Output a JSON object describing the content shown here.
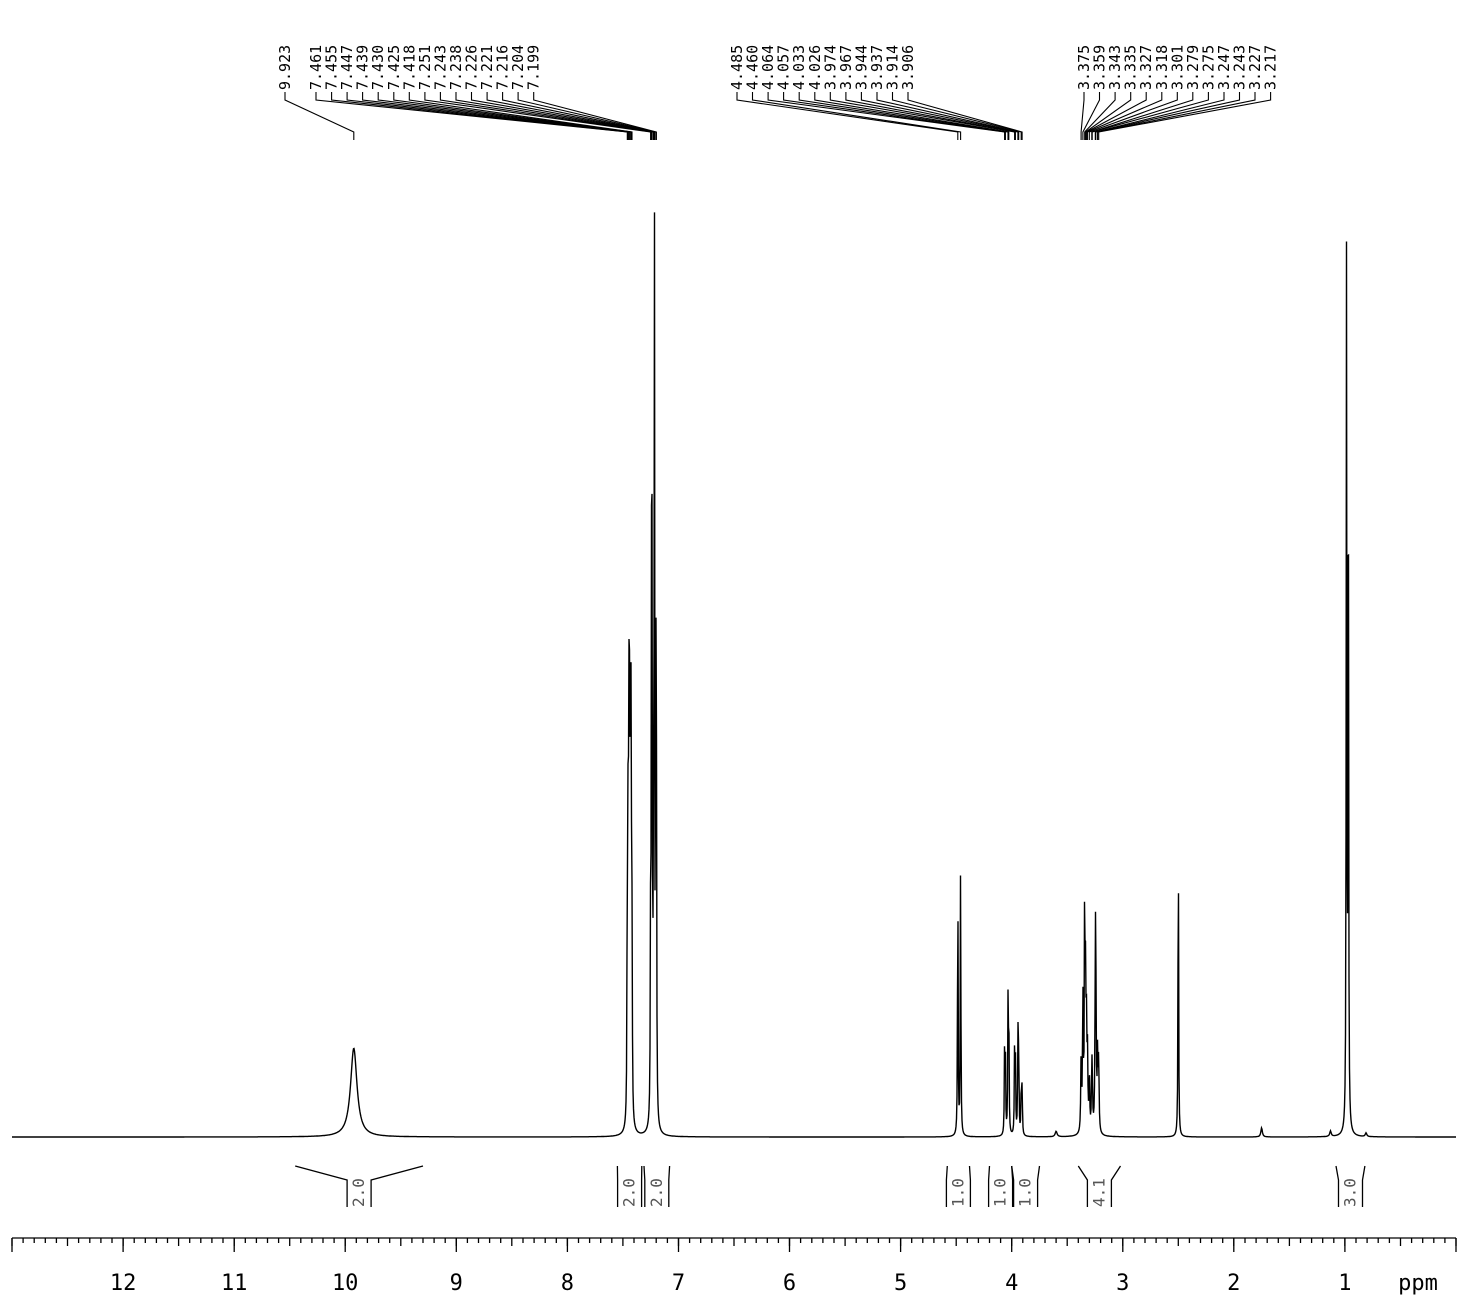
{
  "chart_data": {
    "type": "line",
    "xlabel": "ppm",
    "xlim": [
      13,
      0
    ],
    "ticks": [
      12,
      11,
      10,
      9,
      8,
      7,
      6,
      5,
      4,
      3,
      2,
      1
    ],
    "peak_labels": [
      {
        "group": 0,
        "ppm": 9.923,
        "text": "9.923"
      },
      {
        "group": 1,
        "ppm": 7.461,
        "text": "7.461"
      },
      {
        "group": 1,
        "ppm": 7.455,
        "text": "7.455"
      },
      {
        "group": 1,
        "ppm": 7.447,
        "text": "7.447"
      },
      {
        "group": 1,
        "ppm": 7.439,
        "text": "7.439"
      },
      {
        "group": 1,
        "ppm": 7.43,
        "text": "7.430"
      },
      {
        "group": 1,
        "ppm": 7.425,
        "text": "7.425"
      },
      {
        "group": 1,
        "ppm": 7.418,
        "text": "7.418"
      },
      {
        "group": 1,
        "ppm": 7.251,
        "text": "7.251"
      },
      {
        "group": 1,
        "ppm": 7.243,
        "text": "7.243"
      },
      {
        "group": 1,
        "ppm": 7.238,
        "text": "7.238"
      },
      {
        "group": 1,
        "ppm": 7.226,
        "text": "7.226"
      },
      {
        "group": 1,
        "ppm": 7.221,
        "text": "7.221"
      },
      {
        "group": 1,
        "ppm": 7.216,
        "text": "7.216"
      },
      {
        "group": 1,
        "ppm": 7.204,
        "text": "7.204"
      },
      {
        "group": 1,
        "ppm": 7.199,
        "text": "7.199"
      },
      {
        "group": 2,
        "ppm": 4.485,
        "text": "4.485"
      },
      {
        "group": 2,
        "ppm": 4.46,
        "text": "4.460"
      },
      {
        "group": 2,
        "ppm": 4.064,
        "text": "4.064"
      },
      {
        "group": 2,
        "ppm": 4.057,
        "text": "4.057"
      },
      {
        "group": 2,
        "ppm": 4.033,
        "text": "4.033"
      },
      {
        "group": 2,
        "ppm": 4.026,
        "text": "4.026"
      },
      {
        "group": 2,
        "ppm": 3.974,
        "text": "3.974"
      },
      {
        "group": 2,
        "ppm": 3.967,
        "text": "3.967"
      },
      {
        "group": 2,
        "ppm": 3.944,
        "text": "3.944"
      },
      {
        "group": 2,
        "ppm": 3.937,
        "text": "3.937"
      },
      {
        "group": 2,
        "ppm": 3.914,
        "text": "3.914"
      },
      {
        "group": 2,
        "ppm": 3.906,
        "text": "3.906"
      },
      {
        "group": 3,
        "ppm": 3.375,
        "text": "3.375"
      },
      {
        "group": 3,
        "ppm": 3.359,
        "text": "3.359"
      },
      {
        "group": 3,
        "ppm": 3.343,
        "text": "3.343"
      },
      {
        "group": 3,
        "ppm": 3.335,
        "text": "3.335"
      },
      {
        "group": 3,
        "ppm": 3.327,
        "text": "3.327"
      },
      {
        "group": 3,
        "ppm": 3.318,
        "text": "3.318"
      },
      {
        "group": 3,
        "ppm": 3.301,
        "text": "3.301"
      },
      {
        "group": 3,
        "ppm": 3.279,
        "text": "3.279"
      },
      {
        "group": 3,
        "ppm": 3.275,
        "text": "3.275"
      },
      {
        "group": 3,
        "ppm": 3.247,
        "text": "3.247"
      },
      {
        "group": 3,
        "ppm": 3.243,
        "text": "3.243"
      },
      {
        "group": 3,
        "ppm": 3.227,
        "text": "3.227"
      },
      {
        "group": 3,
        "ppm": 3.217,
        "text": "3.217"
      }
    ],
    "integrals": [
      {
        "from": 10.45,
        "to": 9.3,
        "value": "2.0"
      },
      {
        "from": 7.55,
        "to": 7.33,
        "value": "2.0"
      },
      {
        "from": 7.31,
        "to": 7.08,
        "value": "2.0"
      },
      {
        "from": 4.58,
        "to": 4.38,
        "value": "1.0"
      },
      {
        "from": 4.2,
        "to": 4.0,
        "value": "1.0"
      },
      {
        "from": 4.0,
        "to": 3.75,
        "value": "1.0"
      },
      {
        "from": 3.4,
        "to": 3.02,
        "value": "4.1"
      },
      {
        "from": 1.08,
        "to": 0.82,
        "value": "3.0"
      }
    ],
    "signals": [
      {
        "ppm": 9.923,
        "height": 0.097,
        "width": 0.035
      },
      {
        "ppm": 7.461,
        "height": 0.22,
        "width": 0.003
      },
      {
        "ppm": 7.455,
        "height": 0.28,
        "width": 0.003
      },
      {
        "ppm": 7.447,
        "height": 0.52,
        "width": 0.003
      },
      {
        "ppm": 7.439,
        "height": 0.5,
        "width": 0.003
      },
      {
        "ppm": 7.43,
        "height": 0.48,
        "width": 0.003
      },
      {
        "ppm": 7.425,
        "height": 0.3,
        "width": 0.003
      },
      {
        "ppm": 7.418,
        "height": 0.18,
        "width": 0.003
      },
      {
        "ppm": 7.251,
        "height": 0.2,
        "width": 0.003
      },
      {
        "ppm": 7.243,
        "height": 0.5,
        "width": 0.003
      },
      {
        "ppm": 7.238,
        "height": 0.52,
        "width": 0.003
      },
      {
        "ppm": 7.226,
        "height": 0.2,
        "width": 0.003
      },
      {
        "ppm": 7.221,
        "height": 0.3,
        "width": 0.003
      },
      {
        "ppm": 7.216,
        "height": 0.88,
        "width": 0.002
      },
      {
        "ppm": 7.204,
        "height": 0.48,
        "width": 0.003
      },
      {
        "ppm": 7.199,
        "height": 0.38,
        "width": 0.003
      },
      {
        "ppm": 4.485,
        "height": 0.298,
        "width": 0.003
      },
      {
        "ppm": 4.46,
        "height": 0.305,
        "width": 0.003
      },
      {
        "ppm": 4.064,
        "height": 0.09,
        "width": 0.003
      },
      {
        "ppm": 4.057,
        "height": 0.092,
        "width": 0.003
      },
      {
        "ppm": 4.033,
        "height": 0.14,
        "width": 0.003
      },
      {
        "ppm": 4.026,
        "height": 0.13,
        "width": 0.003
      },
      {
        "ppm": 3.974,
        "height": 0.09,
        "width": 0.003
      },
      {
        "ppm": 3.967,
        "height": 0.092,
        "width": 0.003
      },
      {
        "ppm": 3.944,
        "height": 0.11,
        "width": 0.003
      },
      {
        "ppm": 3.937,
        "height": 0.1,
        "width": 0.003
      },
      {
        "ppm": 3.914,
        "height": 0.06,
        "width": 0.003
      },
      {
        "ppm": 3.906,
        "height": 0.055,
        "width": 0.003
      },
      {
        "ppm": 3.375,
        "height": 0.08,
        "width": 0.004
      },
      {
        "ppm": 3.359,
        "height": 0.15,
        "width": 0.004
      },
      {
        "ppm": 3.343,
        "height": 0.27,
        "width": 0.003
      },
      {
        "ppm": 3.335,
        "height": 0.15,
        "width": 0.004
      },
      {
        "ppm": 3.327,
        "height": 0.1,
        "width": 0.004
      },
      {
        "ppm": 3.318,
        "height": 0.08,
        "width": 0.004
      },
      {
        "ppm": 3.301,
        "height": 0.06,
        "width": 0.004
      },
      {
        "ppm": 3.279,
        "height": 0.05,
        "width": 0.004
      },
      {
        "ppm": 3.275,
        "height": 0.05,
        "width": 0.004
      },
      {
        "ppm": 3.247,
        "height": 0.14,
        "width": 0.004
      },
      {
        "ppm": 3.243,
        "height": 0.16,
        "width": 0.004
      },
      {
        "ppm": 3.227,
        "height": 0.08,
        "width": 0.004
      },
      {
        "ppm": 3.217,
        "height": 0.08,
        "width": 0.004
      },
      {
        "ppm": 2.5,
        "height": 0.355,
        "width": 0.003
      },
      {
        "ppm": 3.6,
        "height": 0.006,
        "width": 0.01
      },
      {
        "ppm": 1.75,
        "height": 0.01,
        "width": 0.008
      },
      {
        "ppm": 1.13,
        "height": 0.006,
        "width": 0.008
      },
      {
        "ppm": 0.81,
        "height": 0.004,
        "width": 0.008
      },
      {
        "ppm": 0.986,
        "height": 0.95,
        "width": 0.003
      },
      {
        "ppm": 0.97,
        "height": 0.94,
        "width": 0.003
      }
    ]
  }
}
